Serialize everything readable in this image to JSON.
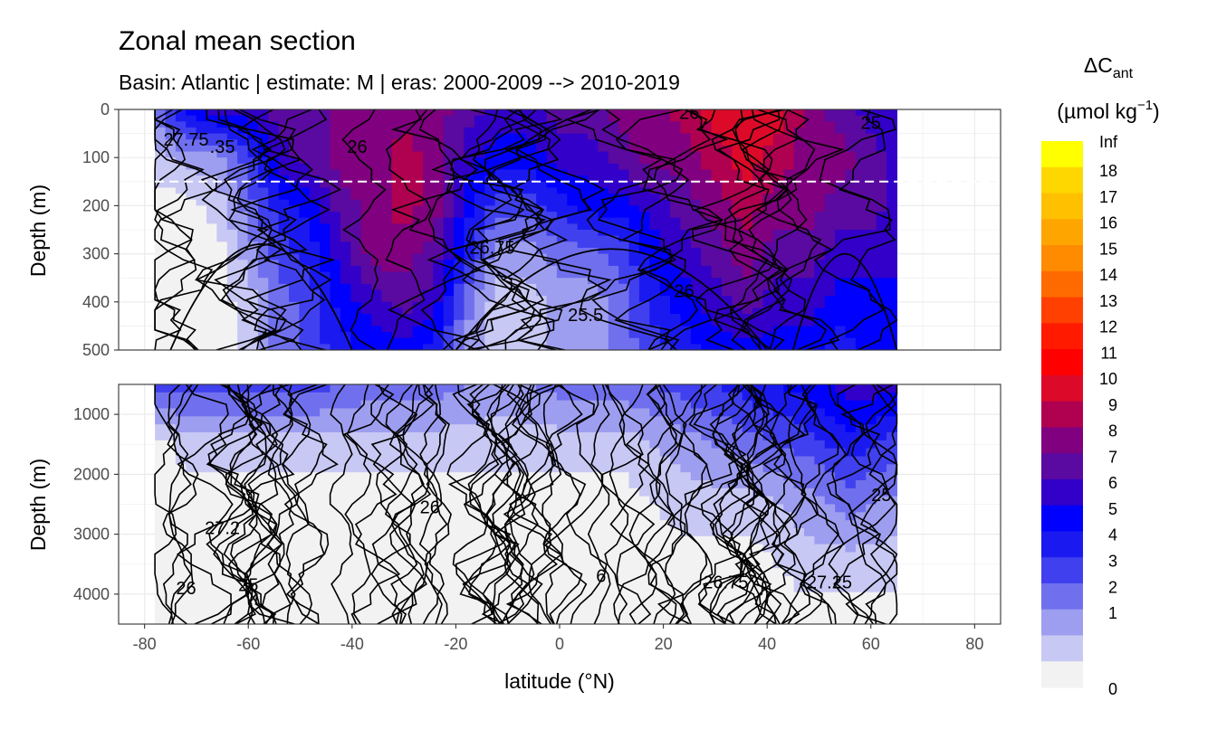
{
  "chart_data": {
    "type": "heatmap",
    "title": "Zonal mean section",
    "subtitle": "Basin: Atlantic | estimate: M  | eras: 2000-2009 --> 2010-2019",
    "xlabel": "latitude (°N)",
    "ylabel": "Depth (m)",
    "xlim": [
      -85,
      85
    ],
    "x_ticks": [
      "-80",
      "-60",
      "-40",
      "-20",
      "0",
      "20",
      "40",
      "60",
      "80"
    ],
    "panels": [
      {
        "name": "upper",
        "ylim": [
          500,
          0
        ],
        "y_ticks": [
          "0",
          "100",
          "200",
          "300",
          "400",
          "500"
        ],
        "reference_line_depth": 150
      },
      {
        "name": "lower",
        "ylim": [
          4500,
          500
        ],
        "y_ticks": [
          "1000",
          "2000",
          "3000",
          "4000"
        ]
      }
    ],
    "data_extent_lat": [
      -78,
      65
    ],
    "legend": {
      "title_main": "ΔC",
      "title_sub": "ant",
      "unit": "(µmol kg",
      "unit_sup": "−1",
      "unit_close": ")",
      "labels": [
        "Inf",
        "18",
        "17",
        "16",
        "15",
        "14",
        "13",
        "12",
        "11",
        "10",
        "9",
        "8",
        "7",
        "6",
        "5",
        "4",
        "3",
        "2",
        "1",
        "0"
      ],
      "colors": [
        "#ffff00",
        "#ffd700",
        "#ffc000",
        "#ffa500",
        "#ff8c00",
        "#ff6a00",
        "#ff4000",
        "#ff1a00",
        "#ff0000",
        "#dc0a28",
        "#b00050",
        "#800080",
        "#5a0aa0",
        "#3200c8",
        "#0000ff",
        "#1a1af0",
        "#4040ee",
        "#7070ee",
        "#9e9ef0",
        "#c8c8f4",
        "#f2f2f2"
      ],
      "position": "right"
    },
    "field_profile_upper": [
      {
        "lat": -78,
        "fill": [
          3,
          1,
          0,
          0,
          0,
          0
        ]
      },
      {
        "lat": -72,
        "fill": [
          6,
          2,
          0,
          0,
          0,
          0
        ]
      },
      {
        "lat": -66,
        "fill": [
          7,
          2,
          1,
          0,
          0,
          0
        ]
      },
      {
        "lat": -60,
        "fill": [
          7,
          4,
          3,
          2,
          1,
          1
        ]
      },
      {
        "lat": -54,
        "fill": [
          8,
          7,
          5,
          4,
          3,
          3
        ]
      },
      {
        "lat": -48,
        "fill": [
          8,
          8,
          6,
          5,
          4,
          4
        ]
      },
      {
        "lat": -42,
        "fill": [
          9,
          9,
          8,
          7,
          6,
          5
        ]
      },
      {
        "lat": -36,
        "fill": [
          9,
          9,
          9,
          9,
          7,
          6
        ]
      },
      {
        "lat": -30,
        "fill": [
          9,
          10,
          10,
          9,
          8,
          6
        ]
      },
      {
        "lat": -24,
        "fill": [
          9,
          9,
          9,
          8,
          7,
          5
        ]
      },
      {
        "lat": -18,
        "fill": [
          8,
          7,
          6,
          5,
          3,
          2
        ]
      },
      {
        "lat": -12,
        "fill": [
          7,
          6,
          4,
          2,
          1,
          1
        ]
      },
      {
        "lat": -6,
        "fill": [
          7,
          6,
          4,
          2,
          1,
          1
        ]
      },
      {
        "lat": 0,
        "fill": [
          8,
          7,
          5,
          3,
          2,
          2
        ]
      },
      {
        "lat": 6,
        "fill": [
          8,
          7,
          6,
          3,
          2,
          2
        ]
      },
      {
        "lat": 12,
        "fill": [
          9,
          8,
          6,
          4,
          3,
          3
        ]
      },
      {
        "lat": 18,
        "fill": [
          9,
          9,
          7,
          6,
          5,
          4
        ]
      },
      {
        "lat": 24,
        "fill": [
          10,
          9,
          8,
          7,
          6,
          5
        ]
      },
      {
        "lat": 30,
        "fill": [
          11,
          10,
          9,
          8,
          7,
          6
        ]
      },
      {
        "lat": 36,
        "fill": [
          11,
          11,
          10,
          9,
          8,
          6
        ]
      },
      {
        "lat": 42,
        "fill": [
          11,
          10,
          9,
          8,
          7,
          6
        ]
      },
      {
        "lat": 48,
        "fill": [
          9,
          9,
          9,
          8,
          7,
          6
        ]
      },
      {
        "lat": 54,
        "fill": [
          8,
          9,
          8,
          7,
          6,
          5
        ]
      },
      {
        "lat": 60,
        "fill": [
          7,
          8,
          8,
          7,
          6,
          6
        ]
      },
      {
        "lat": 65,
        "fill": [
          7,
          7,
          7,
          7,
          6,
          6
        ]
      }
    ],
    "field_profile_lower": [
      {
        "lat": -78,
        "fill": [
          4,
          0,
          0,
          0,
          0
        ]
      },
      {
        "lat": -72,
        "fill": [
          4,
          1,
          0,
          0,
          0
        ]
      },
      {
        "lat": -60,
        "fill": [
          4,
          1,
          0,
          0,
          0
        ]
      },
      {
        "lat": -48,
        "fill": [
          4,
          1,
          0,
          0,
          0
        ]
      },
      {
        "lat": -36,
        "fill": [
          3,
          1,
          0,
          0,
          0
        ]
      },
      {
        "lat": -24,
        "fill": [
          3,
          1,
          0,
          0,
          0
        ]
      },
      {
        "lat": -12,
        "fill": [
          2,
          1,
          0,
          0,
          0
        ]
      },
      {
        "lat": 0,
        "fill": [
          3,
          1,
          0,
          0,
          0
        ]
      },
      {
        "lat": 12,
        "fill": [
          3,
          1,
          0,
          0,
          0
        ]
      },
      {
        "lat": 24,
        "fill": [
          4,
          2,
          1,
          0,
          0
        ]
      },
      {
        "lat": 36,
        "fill": [
          5,
          3,
          1,
          0,
          0
        ]
      },
      {
        "lat": 48,
        "fill": [
          6,
          4,
          2,
          1,
          0
        ]
      },
      {
        "lat": 56,
        "fill": [
          7,
          5,
          3,
          1,
          0
        ]
      },
      {
        "lat": 65,
        "fill": [
          7,
          4,
          2,
          1,
          0
        ]
      }
    ],
    "contour_labels": [
      {
        "panel": "upper",
        "text": "27.75",
        "lat": -72,
        "depth": 75
      },
      {
        "panel": "upper",
        "text": ".35",
        "lat": -65,
        "depth": 90
      },
      {
        "panel": "upper",
        "text": "26",
        "lat": -39,
        "depth": 90
      },
      {
        "panel": "upper",
        "text": "26",
        "lat": 25,
        "depth": 20
      },
      {
        "panel": "upper",
        "text": "25",
        "lat": 60,
        "depth": 40
      },
      {
        "panel": "upper",
        "text": "26.75",
        "lat": -13,
        "depth": 300
      },
      {
        "panel": "upper",
        "text": "26",
        "lat": 24,
        "depth": 390
      },
      {
        "panel": "upper",
        "text": "25.5",
        "lat": 5,
        "depth": 440
      },
      {
        "panel": "lower",
        "text": "27.2",
        "lat": -65,
        "depth": 3000
      },
      {
        "panel": "lower",
        "text": "26",
        "lat": -25,
        "depth": 2650
      },
      {
        "panel": "lower",
        "text": "25",
        "lat": -60,
        "depth": 3950
      },
      {
        "panel": "lower",
        "text": "26",
        "lat": -72,
        "depth": 4000
      },
      {
        "panel": "lower",
        "text": "6",
        "lat": 8,
        "depth": 3800
      },
      {
        "panel": "lower",
        "text": "26.75",
        "lat": 32,
        "depth": 3900
      },
      {
        "panel": "lower",
        "text": "27.25",
        "lat": 52,
        "depth": 3900
      },
      {
        "panel": "lower",
        "text": "25",
        "lat": 62,
        "depth": 2450
      }
    ]
  }
}
